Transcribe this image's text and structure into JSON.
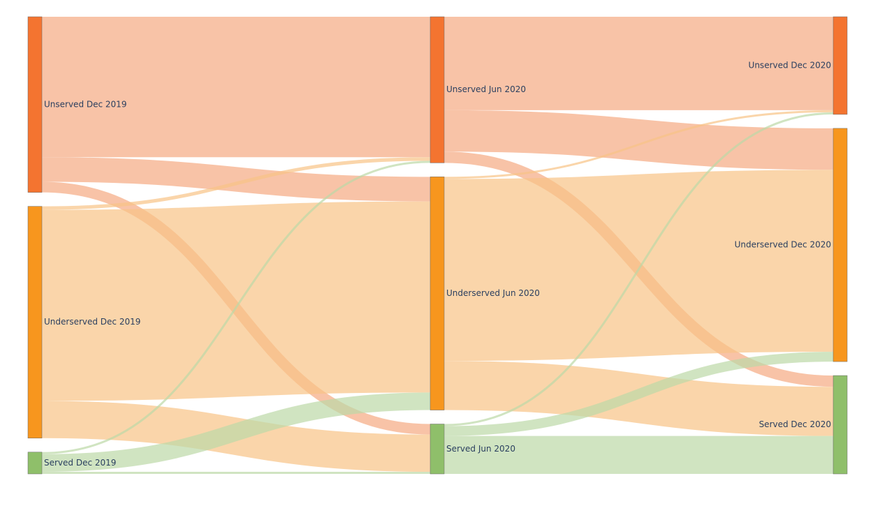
{
  "chart_data": {
    "type": "sankey",
    "colors": {
      "unserved": "#f47430",
      "underserved": "#f7961e",
      "served": "#8fbf6a",
      "link_unserved": "#f5a982",
      "link_underserved": "#f8c386",
      "link_served": "#bcd9a6",
      "node_border": "#666666"
    },
    "nodes": [
      {
        "id": "u19",
        "label": "Unserved Dec 2019",
        "column": 0,
        "category": "unserved"
      },
      {
        "id": "d19",
        "label": "Underserved Dec 2019",
        "column": 0,
        "category": "underserved"
      },
      {
        "id": "s19",
        "label": "Served Dec 2019",
        "column": 0,
        "category": "served"
      },
      {
        "id": "u20a",
        "label": "Unserved Jun 2020",
        "column": 1,
        "category": "unserved"
      },
      {
        "id": "d20a",
        "label": "Underserved Jun 2020",
        "column": 1,
        "category": "underserved"
      },
      {
        "id": "s20a",
        "label": "Served Jun 2020",
        "column": 1,
        "category": "served"
      },
      {
        "id": "u20b",
        "label": "Unserved Dec 2020",
        "column": 2,
        "category": "unserved"
      },
      {
        "id": "d20b",
        "label": "Underserved Dec 2020",
        "column": 2,
        "category": "underserved"
      },
      {
        "id": "s20b",
        "label": "Served Dec 2020",
        "column": 2,
        "category": "served"
      }
    ],
    "links": [
      {
        "source": "u19",
        "target": "u20a",
        "value": 200
      },
      {
        "source": "u19",
        "target": "d20a",
        "value": 35
      },
      {
        "source": "u19",
        "target": "s20a",
        "value": 15
      },
      {
        "source": "d19",
        "target": "u20a",
        "value": 5
      },
      {
        "source": "d19",
        "target": "d20a",
        "value": 272
      },
      {
        "source": "d19",
        "target": "s20a",
        "value": 53
      },
      {
        "source": "s19",
        "target": "u20a",
        "value": 3
      },
      {
        "source": "s19",
        "target": "d20a",
        "value": 25
      },
      {
        "source": "s19",
        "target": "s20a",
        "value": 3
      },
      {
        "source": "u20a",
        "target": "u20b",
        "value": 133
      },
      {
        "source": "u20a",
        "target": "d20b",
        "value": 59
      },
      {
        "source": "u20a",
        "target": "s20b",
        "value": 16
      },
      {
        "source": "d20a",
        "target": "u20b",
        "value": 3
      },
      {
        "source": "d20a",
        "target": "d20b",
        "value": 259
      },
      {
        "source": "d20a",
        "target": "s20b",
        "value": 70
      },
      {
        "source": "s20a",
        "target": "u20b",
        "value": 3
      },
      {
        "source": "s20a",
        "target": "d20b",
        "value": 14
      },
      {
        "source": "s20a",
        "target": "s20b",
        "value": 54
      }
    ]
  }
}
